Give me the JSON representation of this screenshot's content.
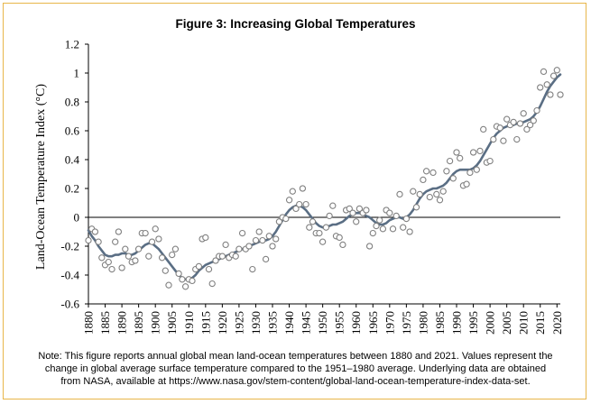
{
  "chart_data": {
    "type": "scatter",
    "title": "Figure 3: Increasing Global Temperatures",
    "ylabel": "Land-Ocean Temperature Index (°C)",
    "xlim": [
      1880,
      2021
    ],
    "ylim": [
      -0.6,
      1.2
    ],
    "y_ticks": [
      "-0.6",
      "-0.4",
      "-0.2",
      "0",
      "0.2",
      "0.4",
      "0.6",
      "0.8",
      "1",
      "1.2"
    ],
    "x_ticks": [
      "1880",
      "1885",
      "1890",
      "1895",
      "1900",
      "1905",
      "1910",
      "1915",
      "1920",
      "1925",
      "1930",
      "1935",
      "1940",
      "1945",
      "1950",
      "1955",
      "1960",
      "1965",
      "1970",
      "1975",
      "1980",
      "1985",
      "1990",
      "1995",
      "2000",
      "2005",
      "2010",
      "2015",
      "2020"
    ],
    "grid": false,
    "zero_line": true,
    "series": [
      {
        "style": "markers",
        "color": "#808080",
        "x": [
          1880,
          1881,
          1882,
          1883,
          1884,
          1885,
          1886,
          1887,
          1888,
          1889,
          1890,
          1891,
          1892,
          1893,
          1894,
          1895,
          1896,
          1897,
          1898,
          1899,
          1900,
          1901,
          1902,
          1903,
          1904,
          1905,
          1906,
          1907,
          1908,
          1909,
          1910,
          1911,
          1912,
          1913,
          1914,
          1915,
          1916,
          1917,
          1918,
          1919,
          1920,
          1921,
          1922,
          1923,
          1924,
          1925,
          1926,
          1927,
          1928,
          1929,
          1930,
          1931,
          1932,
          1933,
          1934,
          1935,
          1936,
          1937,
          1938,
          1939,
          1940,
          1941,
          1942,
          1943,
          1944,
          1945,
          1946,
          1947,
          1948,
          1949,
          1950,
          1951,
          1952,
          1953,
          1954,
          1955,
          1956,
          1957,
          1958,
          1959,
          1960,
          1961,
          1962,
          1963,
          1964,
          1965,
          1966,
          1967,
          1968,
          1969,
          1970,
          1971,
          1972,
          1973,
          1974,
          1975,
          1976,
          1977,
          1978,
          1979,
          1980,
          1981,
          1982,
          1983,
          1984,
          1985,
          1986,
          1987,
          1988,
          1989,
          1990,
          1991,
          1992,
          1993,
          1994,
          1995,
          1996,
          1997,
          1998,
          1999,
          2000,
          2001,
          2002,
          2003,
          2004,
          2005,
          2006,
          2007,
          2008,
          2009,
          2010,
          2011,
          2012,
          2013,
          2014,
          2015,
          2016,
          2017,
          2018,
          2019,
          2020,
          2021
        ],
        "y": [
          -0.16,
          -0.08,
          -0.1,
          -0.17,
          -0.28,
          -0.33,
          -0.31,
          -0.36,
          -0.17,
          -0.1,
          -0.35,
          -0.22,
          -0.27,
          -0.31,
          -0.3,
          -0.22,
          -0.11,
          -0.11,
          -0.27,
          -0.17,
          -0.08,
          -0.15,
          -0.28,
          -0.37,
          -0.47,
          -0.26,
          -0.22,
          -0.39,
          -0.43,
          -0.48,
          -0.43,
          -0.44,
          -0.36,
          -0.34,
          -0.15,
          -0.14,
          -0.36,
          -0.46,
          -0.3,
          -0.27,
          -0.27,
          -0.19,
          -0.28,
          -0.26,
          -0.27,
          -0.22,
          -0.11,
          -0.22,
          -0.2,
          -0.36,
          -0.16,
          -0.1,
          -0.16,
          -0.29,
          -0.13,
          -0.2,
          -0.15,
          -0.03,
          0.0,
          -0.01,
          0.12,
          0.18,
          0.06,
          0.09,
          0.2,
          0.09,
          -0.07,
          -0.03,
          -0.11,
          -0.11,
          -0.17,
          -0.07,
          0.01,
          0.08,
          -0.13,
          -0.14,
          -0.19,
          0.05,
          0.06,
          0.03,
          -0.03,
          0.06,
          0.03,
          0.05,
          -0.2,
          -0.11,
          -0.06,
          -0.02,
          -0.08,
          0.05,
          0.03,
          -0.08,
          0.01,
          0.16,
          -0.07,
          -0.01,
          -0.1,
          0.18,
          0.07,
          0.16,
          0.26,
          0.32,
          0.14,
          0.31,
          0.16,
          0.12,
          0.18,
          0.32,
          0.39,
          0.27,
          0.45,
          0.41,
          0.22,
          0.23,
          0.31,
          0.45,
          0.33,
          0.46,
          0.61,
          0.38,
          0.39,
          0.54,
          0.63,
          0.62,
          0.53,
          0.68,
          0.64,
          0.66,
          0.54,
          0.65,
          0.72,
          0.61,
          0.64,
          0.67,
          0.74,
          0.9,
          1.01,
          0.92,
          0.85,
          0.98,
          1.02,
          0.85
        ]
      },
      {
        "style": "line",
        "color": "#5a6e84",
        "x": [
          1880,
          1881,
          1882,
          1883,
          1884,
          1885,
          1886,
          1887,
          1888,
          1889,
          1890,
          1891,
          1892,
          1893,
          1894,
          1895,
          1896,
          1897,
          1898,
          1899,
          1900,
          1901,
          1902,
          1903,
          1904,
          1905,
          1906,
          1907,
          1908,
          1909,
          1910,
          1911,
          1912,
          1913,
          1914,
          1915,
          1916,
          1917,
          1918,
          1919,
          1920,
          1921,
          1922,
          1923,
          1924,
          1925,
          1926,
          1927,
          1928,
          1929,
          1930,
          1931,
          1932,
          1933,
          1934,
          1935,
          1936,
          1937,
          1938,
          1939,
          1940,
          1941,
          1942,
          1943,
          1944,
          1945,
          1946,
          1947,
          1948,
          1949,
          1950,
          1951,
          1952,
          1953,
          1954,
          1955,
          1956,
          1957,
          1958,
          1959,
          1960,
          1961,
          1962,
          1963,
          1964,
          1965,
          1966,
          1967,
          1968,
          1969,
          1970,
          1971,
          1972,
          1973,
          1974,
          1975,
          1976,
          1977,
          1978,
          1979,
          1980,
          1981,
          1982,
          1983,
          1984,
          1985,
          1986,
          1987,
          1988,
          1989,
          1990,
          1991,
          1992,
          1993,
          1994,
          1995,
          1996,
          1997,
          1998,
          1999,
          2000,
          2001,
          2002,
          2003,
          2004,
          2005,
          2006,
          2007,
          2008,
          2009,
          2010,
          2011,
          2012,
          2013,
          2014,
          2015,
          2016,
          2017,
          2018,
          2019,
          2020,
          2021
        ],
        "y": [
          -0.09,
          -0.13,
          -0.16,
          -0.2,
          -0.23,
          -0.26,
          -0.27,
          -0.27,
          -0.26,
          -0.26,
          -0.25,
          -0.25,
          -0.26,
          -0.26,
          -0.25,
          -0.23,
          -0.21,
          -0.19,
          -0.18,
          -0.18,
          -0.2,
          -0.22,
          -0.25,
          -0.28,
          -0.31,
          -0.34,
          -0.37,
          -0.4,
          -0.42,
          -0.43,
          -0.43,
          -0.42,
          -0.4,
          -0.37,
          -0.35,
          -0.33,
          -0.32,
          -0.31,
          -0.3,
          -0.29,
          -0.28,
          -0.27,
          -0.26,
          -0.25,
          -0.24,
          -0.23,
          -0.22,
          -0.21,
          -0.2,
          -0.19,
          -0.18,
          -0.17,
          -0.16,
          -0.16,
          -0.15,
          -0.13,
          -0.1,
          -0.06,
          -0.02,
          0.02,
          0.05,
          0.07,
          0.08,
          0.08,
          0.07,
          0.05,
          0.02,
          -0.01,
          -0.04,
          -0.06,
          -0.07,
          -0.07,
          -0.06,
          -0.05,
          -0.05,
          -0.04,
          -0.03,
          -0.01,
          0.01,
          0.02,
          0.03,
          0.03,
          0.02,
          0.01,
          0.0,
          -0.02,
          -0.04,
          -0.05,
          -0.05,
          -0.04,
          -0.02,
          -0.01,
          0.0,
          0.0,
          -0.01,
          0.0,
          0.02,
          0.05,
          0.09,
          0.13,
          0.16,
          0.18,
          0.19,
          0.2,
          0.2,
          0.21,
          0.22,
          0.24,
          0.27,
          0.3,
          0.32,
          0.33,
          0.33,
          0.33,
          0.33,
          0.34,
          0.36,
          0.39,
          0.43,
          0.47,
          0.51,
          0.55,
          0.58,
          0.6,
          0.62,
          0.63,
          0.64,
          0.64,
          0.65,
          0.65,
          0.66,
          0.67,
          0.68,
          0.7,
          0.73,
          0.77,
          0.82,
          0.87,
          0.91,
          0.94,
          0.97,
          0.99
        ]
      }
    ]
  },
  "note": {
    "line1": "Note: This figure reports annual global mean land-ocean temperatures between 1880 and 2021. Values represent the",
    "line2": "change in global average surface temperature compared to the 1951–1980 average. Underlying data are obtained",
    "line3": "from NASA, available at https://www.nasa.gov/stem-content/global-land-ocean-temperature-index-data-set."
  }
}
